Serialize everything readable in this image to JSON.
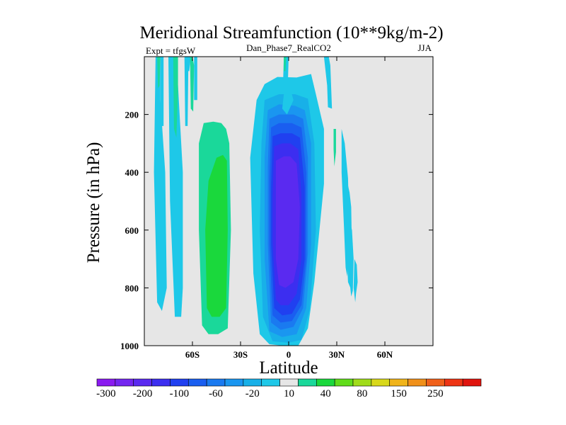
{
  "chart_data": {
    "type": "contour",
    "title": "Meridional Streamfunction (10**9kg/m-2)",
    "left_label": "Expt = tfgsW",
    "center_label": "Dan_Phase7_RealCO2",
    "right_label": "JJA",
    "xlabel": "Latitude",
    "ylabel": "Pressure (in hPa)",
    "xlim": [
      -90,
      90
    ],
    "ylim": [
      0,
      1000
    ],
    "y_inverted": true,
    "x_ticks": [
      {
        "value": -60,
        "label": "60S"
      },
      {
        "value": -30,
        "label": "30S"
      },
      {
        "value": 0,
        "label": "0"
      },
      {
        "value": 30,
        "label": "30N"
      },
      {
        "value": 60,
        "label": "60N"
      }
    ],
    "y_ticks": [
      {
        "value": 200,
        "label": "200"
      },
      {
        "value": 400,
        "label": "400"
      },
      {
        "value": 600,
        "label": "600"
      },
      {
        "value": 800,
        "label": "800"
      },
      {
        "value": 1000,
        "label": "1000"
      }
    ],
    "background_color": "#e6e6e6",
    "colorbar": {
      "colors": [
        "#8a1bf0",
        "#7426f0",
        "#5a2af0",
        "#3c2ef0",
        "#2040f0",
        "#1a5ef0",
        "#1a7af0",
        "#1a96f0",
        "#18b0e8",
        "#1ec8e8",
        "#e6e6e6",
        "#1ad89a",
        "#1ad83c",
        "#60dc1a",
        "#a0dc1a",
        "#d8d81a",
        "#f0b41a",
        "#f0901a",
        "#f0601a",
        "#ee3414",
        "#e0140e"
      ],
      "labels": [
        "-300",
        "-200",
        "-100",
        "-60",
        "-20",
        "10",
        "40",
        "80",
        "150",
        "250"
      ],
      "label_positions": [
        0.5,
        2.5,
        4.5,
        6.5,
        8.5,
        10.5,
        12.5,
        14.5,
        16.5,
        18.5
      ]
    },
    "contours": [
      {
        "level_index": 9,
        "lat": [
          -15,
          -7,
          5,
          14,
          17,
          22,
          22,
          16,
          12,
          6,
          -4,
          -12,
          -18,
          -22,
          -24,
          -20
        ],
        "p": [
          95,
          70,
          72,
          60,
          130,
          250,
          440,
          780,
          940,
          1000,
          1000,
          995,
          960,
          750,
          350,
          150
        ]
      },
      {
        "level_index": 8,
        "lat": [
          -15,
          -6,
          4,
          12,
          16,
          17,
          13,
          8,
          0,
          -10,
          -16,
          -18,
          -17
        ],
        "p": [
          150,
          130,
          130,
          145,
          300,
          600,
          880,
          980,
          990,
          985,
          900,
          600,
          300
        ]
      },
      {
        "level_index": 7,
        "lat": [
          -13,
          -6,
          4,
          10,
          14,
          14,
          11,
          5,
          -4,
          -12,
          -15,
          -15
        ],
        "p": [
          185,
          165,
          170,
          185,
          300,
          650,
          870,
          960,
          970,
          950,
          700,
          350
        ]
      },
      {
        "level_index": 6,
        "lat": [
          -12,
          -6,
          3,
          9,
          12,
          12,
          9,
          3,
          -5,
          -11,
          -13,
          -13
        ],
        "p": [
          215,
          200,
          200,
          215,
          350,
          680,
          870,
          935,
          945,
          920,
          650,
          380
        ]
      },
      {
        "level_index": 5,
        "lat": [
          -11,
          -6,
          2,
          8,
          11,
          11,
          8,
          2,
          -5,
          -10,
          -12,
          -12
        ],
        "p": [
          245,
          230,
          230,
          245,
          400,
          700,
          860,
          915,
          920,
          895,
          650,
          420
        ]
      },
      {
        "level_index": 4,
        "lat": [
          -10,
          -5,
          2,
          7,
          10,
          10,
          7,
          2,
          -4,
          -9,
          -11,
          -11
        ],
        "p": [
          275,
          265,
          265,
          280,
          450,
          700,
          840,
          890,
          895,
          870,
          650,
          450
        ]
      },
      {
        "level_index": 3,
        "lat": [
          -9,
          -4,
          1,
          6,
          8,
          8,
          5,
          0,
          -5,
          -8,
          -10,
          -10
        ],
        "p": [
          310,
          300,
          300,
          320,
          480,
          700,
          820,
          860,
          860,
          840,
          640,
          480
        ]
      },
      {
        "level_index": 2,
        "lat": [
          -8,
          -3,
          1,
          5,
          7,
          6,
          3,
          -2,
          -6,
          -8,
          -8
        ],
        "p": [
          360,
          345,
          345,
          370,
          520,
          700,
          780,
          800,
          790,
          700,
          520
        ]
      },
      {
        "level_index": 9,
        "lat": [
          -83,
          -80,
          -80,
          -77,
          -76,
          -79,
          -82,
          -84
        ],
        "p": [
          0,
          0,
          150,
          400,
          800,
          880,
          850,
          400
        ]
      },
      {
        "level_index": 9,
        "lat": [
          -75,
          -72,
          -69,
          -66,
          -66,
          -67,
          -71,
          -74
        ],
        "p": [
          0,
          0,
          100,
          400,
          800,
          900,
          900,
          500
        ]
      },
      {
        "level_index": 11,
        "lat": [
          -82,
          -80,
          -80.5,
          -81.5
        ],
        "p": [
          0,
          0,
          100,
          110
        ]
      },
      {
        "level_index": 11,
        "lat": [
          -72,
          -69,
          -69,
          -70,
          -71.5
        ],
        "p": [
          0,
          0,
          120,
          280,
          250
        ]
      },
      {
        "level_index": 9,
        "lat": [
          -64,
          -61,
          -62,
          -63
        ],
        "p": [
          0,
          0,
          50,
          50
        ]
      },
      {
        "level_index": 9,
        "lat": [
          -80,
          -78,
          -78,
          -80
        ],
        "p": [
          0,
          0,
          240,
          240
        ]
      },
      {
        "level_index": 9,
        "lat": [
          -65,
          -62.5,
          -63,
          -64.5
        ],
        "p": [
          0,
          0,
          240,
          240
        ]
      },
      {
        "level_index": 9,
        "lat": [
          -59,
          -57,
          -57,
          -59
        ],
        "p": [
          0,
          0,
          150,
          150
        ]
      },
      {
        "level_index": 11,
        "lat": [
          -61.5,
          -60,
          -59,
          -59.5,
          -61
        ],
        "p": [
          0,
          0,
          30,
          190,
          180
        ]
      },
      {
        "level_index": 11,
        "lat": [
          -53,
          -47,
          -42,
          -39,
          -37,
          -36,
          -38,
          -44,
          -50,
          -54,
          -56,
          -56
        ],
        "p": [
          230,
          225,
          230,
          250,
          300,
          600,
          940,
          960,
          960,
          930,
          600,
          300
        ]
      },
      {
        "level_index": 12,
        "lat": [
          -45,
          -41,
          -38.5,
          -38,
          -39,
          -43,
          -48,
          -51,
          -52,
          -50
        ],
        "p": [
          350,
          340,
          360,
          600,
          870,
          900,
          900,
          870,
          600,
          430
        ]
      },
      {
        "level_index": 9,
        "lat": [
          -3,
          0,
          -0.5,
          -3.5
        ],
        "p": [
          0,
          0,
          90,
          90
        ]
      },
      {
        "level_index": 11,
        "lat": [
          -3,
          -1.5,
          -2,
          -3
        ],
        "p": [
          0,
          0,
          50,
          50
        ]
      },
      {
        "level_index": 9,
        "lat": [
          -3,
          2,
          3,
          -1,
          -4
        ],
        "p": [
          130,
          130,
          150,
          200,
          180
        ]
      },
      {
        "level_index": 9,
        "lat": [
          22,
          25,
          26,
          27,
          24.5,
          24
        ],
        "p": [
          0,
          0,
          30,
          180,
          175,
          100
        ]
      },
      {
        "level_index": 11,
        "lat": [
          28,
          29.5,
          29.5,
          28.5,
          28
        ],
        "p": [
          250,
          250,
          330,
          380,
          320
        ]
      },
      {
        "level_index": 9,
        "lat": [
          36,
          38,
          39,
          39.5,
          38.5,
          37,
          35.5
        ],
        "p": [
          420,
          470,
          520,
          680,
          800,
          780,
          600
        ]
      },
      {
        "level_index": 9,
        "lat": [
          33,
          35,
          37,
          38,
          36.5,
          35.5,
          34.5,
          33
        ],
        "p": [
          250,
          300,
          420,
          640,
          760,
          730,
          590,
          400
        ]
      },
      {
        "level_index": 9,
        "lat": [
          37.5,
          39.5,
          40.5,
          40,
          39,
          37.5,
          36.5
        ],
        "p": [
          560,
          600,
          700,
          810,
          830,
          750,
          650
        ]
      },
      {
        "level_index": 9,
        "lat": [
          41,
          42.5,
          43,
          42,
          41.5,
          40.5
        ],
        "p": [
          700,
          720,
          780,
          820,
          850,
          800
        ]
      }
    ]
  }
}
